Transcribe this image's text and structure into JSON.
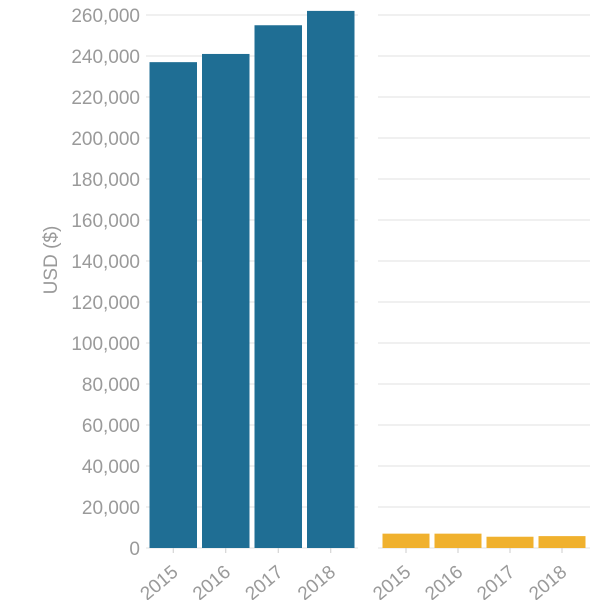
{
  "chart_data": {
    "type": "bar",
    "ylabel": "USD ($)",
    "ylim": [
      0,
      260000
    ],
    "y_ticks": [
      "0",
      "20,000",
      "40,000",
      "60,000",
      "80,000",
      "100,000",
      "120,000",
      "140,000",
      "160,000",
      "180,000",
      "200,000",
      "220,000",
      "240,000",
      "260,000"
    ],
    "y_tick_values": [
      0,
      20000,
      40000,
      60000,
      80000,
      100000,
      120000,
      140000,
      160000,
      180000,
      200000,
      220000,
      240000,
      260000
    ],
    "grid": true,
    "panels": [
      {
        "categories": [
          "2015",
          "2016",
          "2017",
          "2018"
        ],
        "values": [
          237000,
          241000,
          255000,
          262000
        ],
        "color": "#1f6e94"
      },
      {
        "categories": [
          "2015",
          "2016",
          "2017",
          "2018"
        ],
        "values": [
          7000,
          7000,
          5500,
          5800
        ],
        "color": "#f0b12e"
      }
    ]
  }
}
